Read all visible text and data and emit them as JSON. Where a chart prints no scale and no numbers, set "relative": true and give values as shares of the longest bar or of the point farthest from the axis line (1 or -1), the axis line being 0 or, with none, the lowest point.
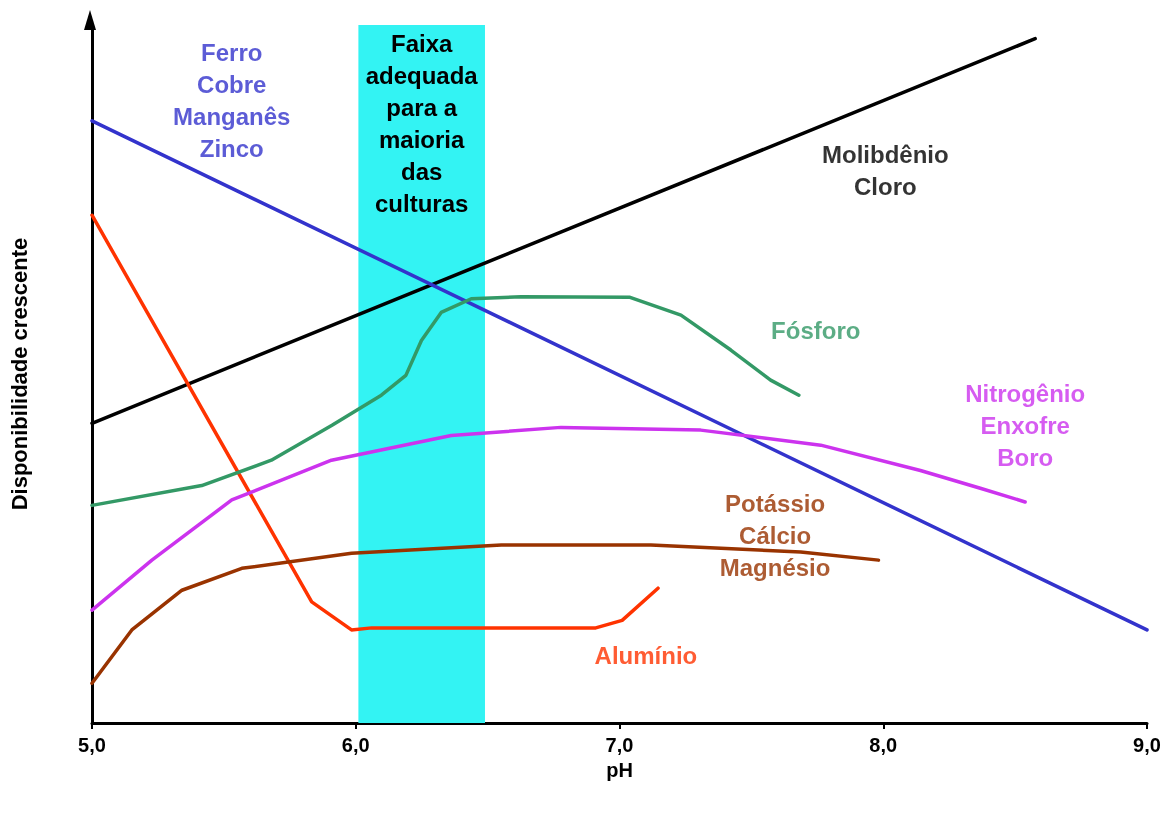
{
  "chart_data": {
    "type": "line",
    "relative": true,
    "xlabel": "pH",
    "ylabel": "Disponibilidade crescente",
    "xlim": [
      5,
      9
    ],
    "xticks": [
      {
        "value": 5,
        "label": "5,0"
      },
      {
        "value": 6,
        "label": "6,0"
      },
      {
        "value": 7,
        "label": "7,0"
      },
      {
        "value": 8,
        "label": "8,0"
      },
      {
        "value": 9,
        "label": "9,0"
      }
    ],
    "grid": false,
    "legend": false,
    "marker": "none",
    "line_style": "solid",
    "bands": [
      {
        "axis": "x",
        "from": 6.01,
        "to": 6.49,
        "label": "Faixa\nadequada\npara a\nmaioria\ndas\nculturas",
        "color": "#33f3f3"
      }
    ],
    "series": [
      {
        "name": "Molibdênio\nCloro",
        "color": "#000000",
        "x": [
          5,
          8.576
        ],
        "values": [
          0.438,
          1
        ]
      },
      {
        "name": "Ferro\nCobre\nManganês\nZinco",
        "color": "#3333cc",
        "x": [
          5,
          9
        ],
        "values": [
          0.88,
          0.136
        ]
      },
      {
        "name": "Alumínio",
        "color": "#ff3300",
        "x": [
          5,
          5.833,
          5.984,
          6.06,
          6.91,
          7.01,
          7.146
        ],
        "values": [
          0.742,
          0.177,
          0.136,
          0.139,
          0.139,
          0.15,
          0.197
        ]
      },
      {
        "name": "Fósforo",
        "color": "#339966",
        "x": [
          5,
          5.416,
          5.68,
          5.91,
          6.097,
          6.19,
          6.249,
          6.324,
          6.438,
          6.627,
          7.04,
          7.233,
          7.422,
          7.573,
          7.68
        ],
        "values": [
          0.318,
          0.347,
          0.384,
          0.435,
          0.479,
          0.508,
          0.559,
          0.6,
          0.62,
          0.623,
          0.622,
          0.596,
          0.545,
          0.501,
          0.479
        ]
      },
      {
        "name": "Nitrogênio\nEnxofre\nBoro",
        "color": "#cc33ee",
        "x": [
          5,
          5.227,
          5.53,
          5.908,
          6.362,
          6.778,
          7.308,
          7.763,
          8.141,
          8.368,
          8.538
        ],
        "values": [
          0.165,
          0.238,
          0.326,
          0.384,
          0.42,
          0.432,
          0.428,
          0.406,
          0.369,
          0.343,
          0.323
        ]
      },
      {
        "name": "Potássio\nCálcio\nMagnésio",
        "color": "#993300",
        "x": [
          5,
          5.151,
          5.341,
          5.568,
          5.984,
          6.552,
          7.119,
          7.687,
          7.982
        ],
        "values": [
          0.058,
          0.136,
          0.194,
          0.226,
          0.248,
          0.26,
          0.26,
          0.25,
          0.238
        ]
      }
    ]
  }
}
